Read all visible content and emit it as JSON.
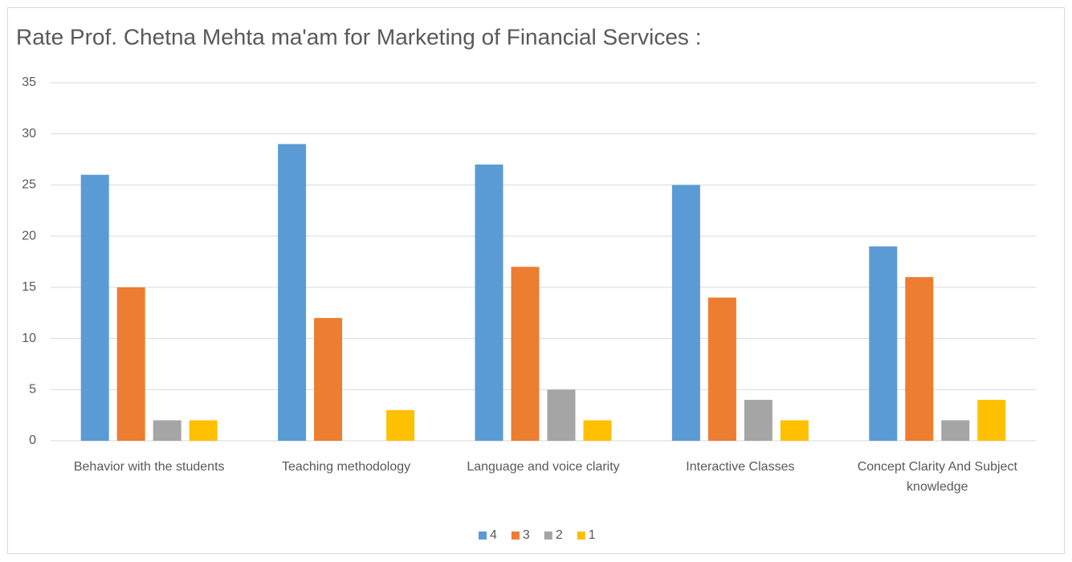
{
  "chart_data": {
    "type": "bar",
    "title": "Rate Prof. Chetna Mehta ma'am for Marketing of Financial Services :",
    "categories": [
      "Behavior with the students",
      "Teaching methodology",
      "Language and voice clarity",
      "Interactive Classes",
      "Concept Clarity And Subject knowledge"
    ],
    "series": [
      {
        "name": "4",
        "color": "#5b9bd5",
        "values": [
          26,
          29,
          27,
          25,
          19
        ]
      },
      {
        "name": "3",
        "color": "#ed7d31",
        "values": [
          15,
          12,
          17,
          14,
          16
        ]
      },
      {
        "name": "2",
        "color": "#a5a5a5",
        "values": [
          2,
          0,
          5,
          4,
          2
        ]
      },
      {
        "name": "1",
        "color": "#ffc000",
        "values": [
          2,
          3,
          2,
          2,
          4
        ]
      }
    ],
    "ylim": [
      0,
      35
    ],
    "yticks": [
      0,
      5,
      10,
      15,
      20,
      25,
      30,
      35
    ],
    "grid": true,
    "legend": "bottom"
  }
}
